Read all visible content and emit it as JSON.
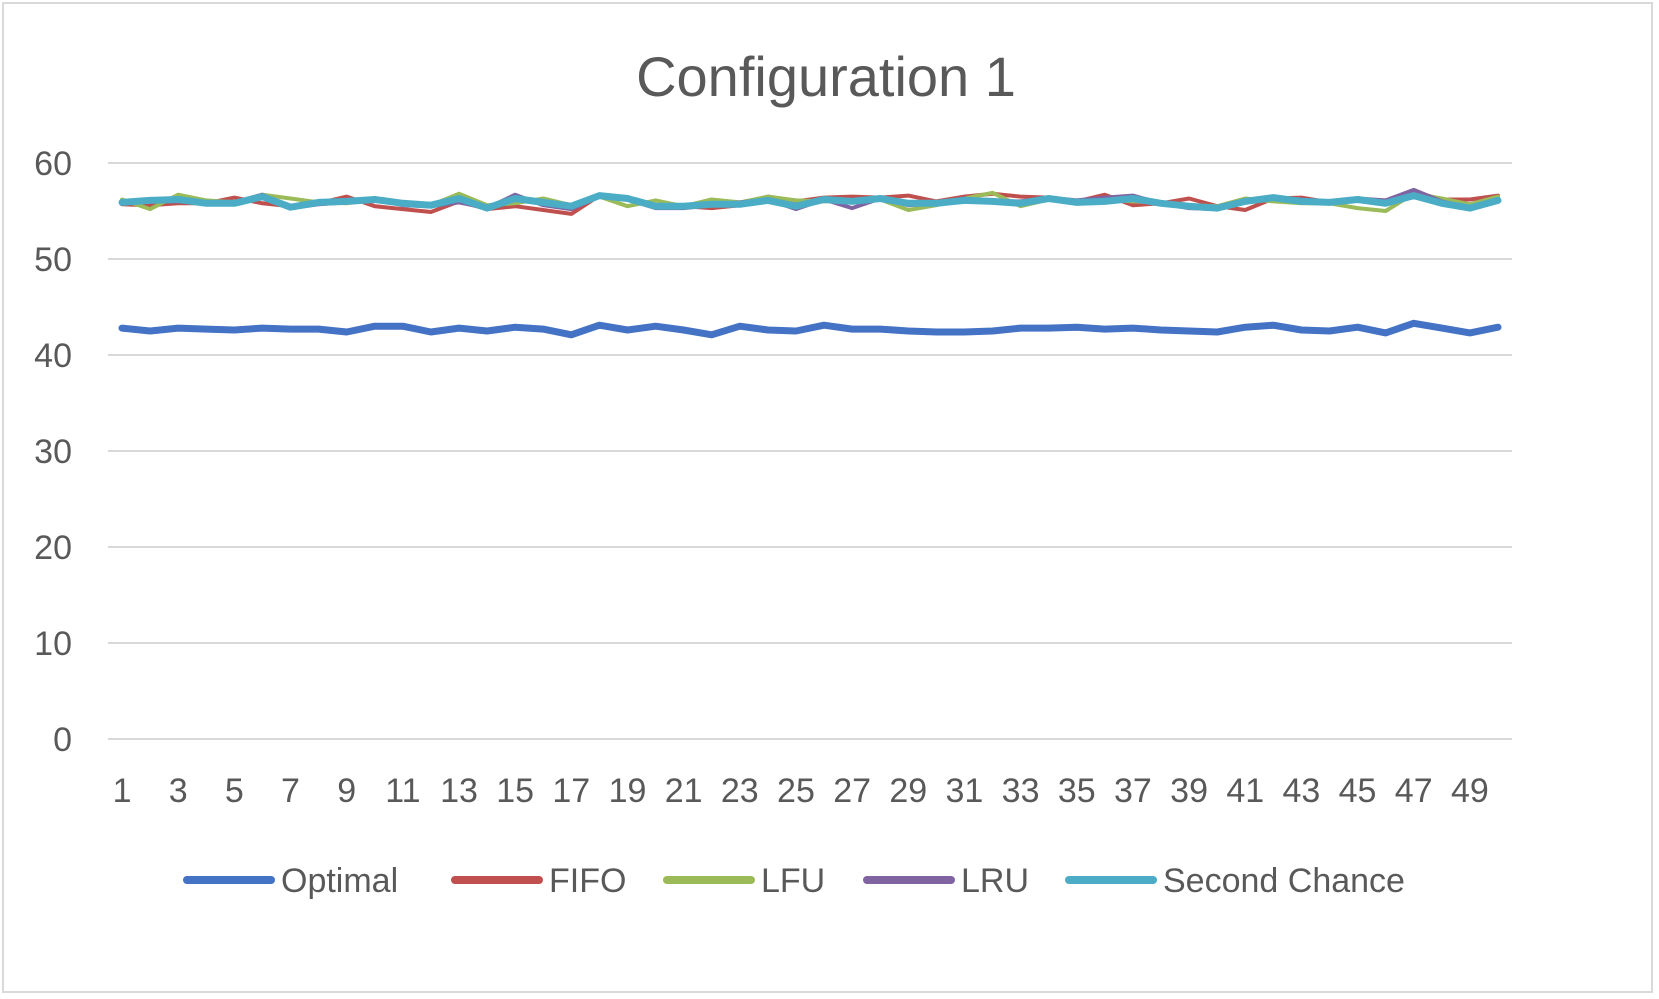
{
  "chart_data": {
    "type": "line",
    "title": "Configuration 1",
    "xlabel": "",
    "ylabel": "",
    "ylim": [
      0,
      60
    ],
    "yticks": [
      0,
      10,
      20,
      30,
      40,
      50,
      60
    ],
    "x": [
      1,
      2,
      3,
      4,
      5,
      6,
      7,
      8,
      9,
      10,
      11,
      12,
      13,
      14,
      15,
      16,
      17,
      18,
      19,
      20,
      21,
      22,
      23,
      24,
      25,
      26,
      27,
      28,
      29,
      30,
      31,
      32,
      33,
      34,
      35,
      36,
      37,
      38,
      39,
      40,
      41,
      42,
      43,
      44,
      45,
      46,
      47,
      48,
      49,
      50
    ],
    "xtick_labels": [
      "1",
      "3",
      "5",
      "7",
      "9",
      "11",
      "13",
      "15",
      "17",
      "19",
      "21",
      "23",
      "25",
      "27",
      "29",
      "31",
      "33",
      "35",
      "37",
      "39",
      "41",
      "43",
      "45",
      "47",
      "49"
    ],
    "grid": true,
    "legend_position": "bottom",
    "series": [
      {
        "name": "Optimal",
        "color": "#4472C4",
        "values": [
          42.8,
          42.5,
          42.8,
          42.7,
          42.6,
          42.8,
          42.7,
          42.7,
          42.4,
          43.0,
          43.0,
          42.4,
          42.8,
          42.5,
          42.9,
          42.7,
          42.1,
          43.1,
          42.6,
          43.0,
          42.6,
          42.1,
          43.0,
          42.6,
          42.5,
          43.1,
          42.7,
          42.7,
          42.5,
          42.4,
          42.4,
          42.5,
          42.8,
          42.8,
          42.9,
          42.7,
          42.8,
          42.6,
          42.5,
          42.4,
          42.9,
          43.1,
          42.6,
          42.5,
          42.9,
          42.3,
          43.3,
          42.8,
          42.3,
          42.9
        ]
      },
      {
        "name": "FIFO",
        "color": "#C0504D",
        "values": [
          55.7,
          55.6,
          55.8,
          55.8,
          56.4,
          55.8,
          55.5,
          55.8,
          56.5,
          55.5,
          55.2,
          54.9,
          56.0,
          55.2,
          55.5,
          55.1,
          54.7,
          56.6,
          56.3,
          55.4,
          55.5,
          55.3,
          55.6,
          56.5,
          56.0,
          56.4,
          56.5,
          56.4,
          56.6,
          56.0,
          56.5,
          56.8,
          56.5,
          56.4,
          56.0,
          56.7,
          55.6,
          55.8,
          56.3,
          55.5,
          55.1,
          56.3,
          56.4,
          55.9,
          56.2,
          56.0,
          57.0,
          56.2,
          56.2,
          56.6
        ]
      },
      {
        "name": "LFU",
        "color": "#9BBB59",
        "values": [
          56.2,
          55.2,
          56.7,
          56.1,
          55.9,
          56.7,
          56.3,
          55.9,
          55.8,
          56.2,
          55.7,
          55.6,
          56.8,
          55.6,
          55.8,
          56.3,
          55.6,
          56.5,
          55.5,
          56.1,
          55.5,
          56.2,
          55.9,
          56.5,
          56.1,
          56.0,
          56.1,
          56.2,
          55.1,
          55.6,
          56.3,
          56.9,
          55.5,
          56.2,
          55.9,
          56.2,
          56.0,
          55.9,
          55.6,
          55.5,
          56.3,
          56.0,
          55.8,
          55.8,
          55.3,
          55.0,
          56.8,
          56.3,
          55.7,
          56.5
        ]
      },
      {
        "name": "LRU",
        "color": "#8064A2",
        "values": [
          55.8,
          56.0,
          56.0,
          55.8,
          55.9,
          56.7,
          55.3,
          55.7,
          55.9,
          56.3,
          55.6,
          55.5,
          55.9,
          55.3,
          56.7,
          55.6,
          55.2,
          56.5,
          56.2,
          55.3,
          55.3,
          55.6,
          55.9,
          56.2,
          55.2,
          56.2,
          55.3,
          56.3,
          55.6,
          55.8,
          56.3,
          56.0,
          56.0,
          56.4,
          56.1,
          56.4,
          56.6,
          55.8,
          55.3,
          55.2,
          55.9,
          56.4,
          56.2,
          56.0,
          56.3,
          56.1,
          57.2,
          56.0,
          55.4,
          56.1
        ]
      },
      {
        "name": "Second Chance",
        "color": "#4BACC6",
        "values": [
          55.9,
          56.1,
          56.2,
          55.8,
          55.8,
          56.5,
          55.4,
          55.9,
          56.0,
          56.2,
          55.8,
          55.6,
          56.3,
          55.3,
          56.3,
          55.9,
          55.5,
          56.6,
          56.3,
          55.5,
          55.5,
          55.7,
          55.7,
          56.1,
          55.5,
          56.2,
          56.0,
          56.3,
          55.8,
          55.8,
          56.1,
          56.0,
          55.8,
          56.3,
          55.9,
          56.0,
          56.3,
          55.8,
          55.5,
          55.3,
          56.0,
          56.4,
          56.0,
          55.9,
          56.2,
          55.8,
          56.6,
          55.8,
          55.3,
          56.1
        ]
      }
    ]
  }
}
